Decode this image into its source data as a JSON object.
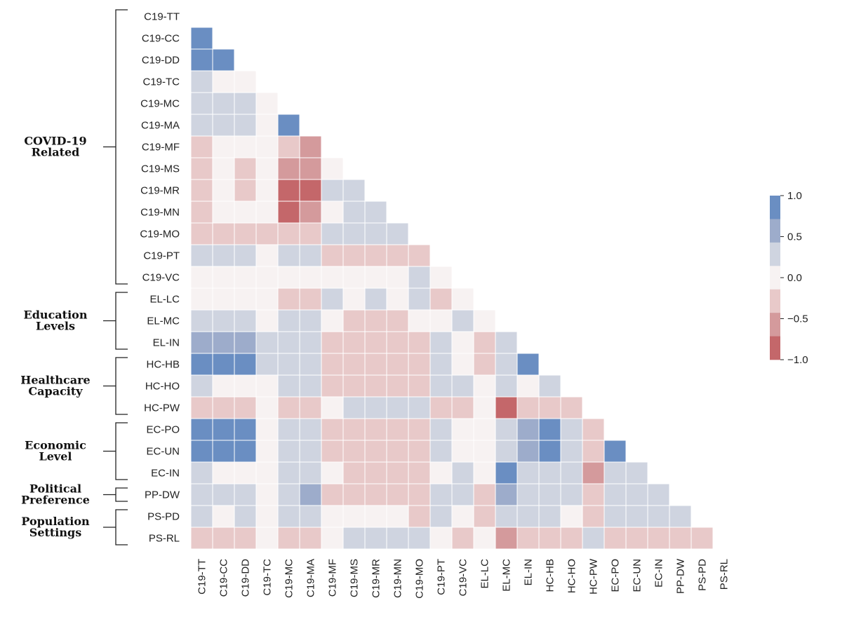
{
  "chart_data": {
    "type": "heatmap",
    "variables": [
      "C19-TT",
      "C19-CC",
      "C19-DD",
      "C19-TC",
      "C19-MC",
      "C19-MA",
      "C19-MF",
      "C19-MS",
      "C19-MR",
      "C19-MN",
      "C19-MO",
      "C19-PT",
      "C19-VC",
      "EL-LC",
      "EL-MC",
      "EL-IN",
      "HC-HB",
      "HC-HO",
      "HC-PW",
      "EC-PO",
      "EC-UN",
      "EC-IN",
      "PP-DW",
      "PS-PD",
      "PS-RL"
    ],
    "lower_triangle_values": [
      [],
      [
        0.9
      ],
      [
        0.9,
        0.9
      ],
      [
        0.2,
        0.0,
        0.0
      ],
      [
        0.2,
        0.2,
        0.2,
        0.0
      ],
      [
        0.2,
        0.2,
        0.2,
        0.0,
        0.9
      ],
      [
        -0.3,
        0.0,
        0.0,
        0.0,
        -0.3,
        -0.6
      ],
      [
        -0.3,
        0.0,
        -0.3,
        0.0,
        -0.6,
        -0.6,
        0.0
      ],
      [
        -0.3,
        0.0,
        -0.3,
        0.0,
        -0.9,
        -0.9,
        0.2,
        0.2
      ],
      [
        -0.3,
        0.0,
        0.0,
        0.0,
        -0.9,
        -0.6,
        0.0,
        0.2,
        0.2
      ],
      [
        -0.3,
        -0.3,
        -0.3,
        -0.3,
        -0.3,
        -0.3,
        0.2,
        0.2,
        0.2,
        0.2
      ],
      [
        0.2,
        0.2,
        0.2,
        0.0,
        0.2,
        0.2,
        -0.3,
        -0.3,
        -0.3,
        -0.3,
        -0.3
      ],
      [
        0.0,
        0.0,
        0.0,
        0.0,
        0.0,
        0.0,
        0.0,
        0.0,
        0.0,
        0.0,
        0.2,
        0.0
      ],
      [
        0.0,
        0.0,
        0.0,
        0.0,
        -0.3,
        -0.3,
        0.2,
        0.0,
        0.2,
        0.0,
        0.2,
        -0.3,
        0.0
      ],
      [
        0.2,
        0.2,
        0.2,
        0.0,
        0.2,
        0.2,
        0.0,
        -0.3,
        -0.3,
        -0.3,
        0.0,
        0.0,
        0.2,
        0.0
      ],
      [
        0.6,
        0.6,
        0.6,
        0.2,
        0.2,
        0.2,
        -0.3,
        -0.3,
        -0.3,
        -0.3,
        -0.3,
        0.2,
        0.0,
        -0.3,
        0.2
      ],
      [
        0.9,
        0.9,
        0.9,
        0.2,
        0.2,
        0.2,
        -0.3,
        -0.3,
        -0.3,
        -0.3,
        -0.3,
        0.2,
        0.0,
        -0.3,
        0.2,
        0.9
      ],
      [
        0.2,
        0.0,
        0.0,
        0.0,
        0.2,
        0.2,
        -0.3,
        -0.3,
        -0.3,
        -0.3,
        -0.3,
        0.2,
        0.2,
        0.0,
        0.2,
        0.0,
        0.2
      ],
      [
        -0.3,
        -0.3,
        -0.3,
        0.0,
        -0.3,
        -0.3,
        0.0,
        0.2,
        0.2,
        0.2,
        0.2,
        -0.3,
        -0.3,
        0.0,
        -0.9,
        -0.3,
        -0.3,
        -0.3
      ],
      [
        0.9,
        0.9,
        0.9,
        0.0,
        0.2,
        0.2,
        -0.3,
        -0.3,
        -0.3,
        -0.3,
        -0.3,
        0.2,
        0.0,
        0.0,
        0.2,
        0.6,
        0.9,
        0.2,
        -0.3
      ],
      [
        0.9,
        0.9,
        0.9,
        0.0,
        0.2,
        0.2,
        -0.3,
        -0.3,
        -0.3,
        -0.3,
        -0.3,
        0.2,
        0.0,
        0.0,
        0.2,
        0.6,
        0.9,
        0.2,
        -0.3,
        0.9
      ],
      [
        0.2,
        0.0,
        0.0,
        0.0,
        0.2,
        0.2,
        0.0,
        -0.3,
        -0.3,
        -0.3,
        -0.3,
        0.0,
        0.2,
        0.0,
        0.9,
        0.2,
        0.2,
        0.2,
        -0.6,
        0.2,
        0.2
      ],
      [
        0.2,
        0.2,
        0.2,
        0.0,
        0.2,
        0.6,
        -0.3,
        -0.3,
        -0.3,
        -0.3,
        -0.3,
        0.2,
        0.2,
        -0.3,
        0.6,
        0.2,
        0.2,
        0.2,
        -0.3,
        0.2,
        0.2,
        0.2
      ],
      [
        0.2,
        0.0,
        0.2,
        0.0,
        0.2,
        0.2,
        0.0,
        0.0,
        0.0,
        0.0,
        -0.3,
        0.2,
        0.0,
        -0.3,
        0.2,
        0.2,
        0.2,
        0.0,
        -0.3,
        0.2,
        0.2,
        0.2,
        0.2
      ],
      [
        -0.3,
        -0.3,
        -0.3,
        0.0,
        -0.3,
        -0.3,
        0.0,
        0.2,
        0.2,
        0.2,
        0.2,
        0.0,
        -0.3,
        0.0,
        -0.6,
        -0.3,
        -0.3,
        -0.3,
        0.2,
        -0.3,
        -0.3,
        -0.3,
        -0.3,
        -0.3
      ]
    ],
    "color_bins": [
      {
        "from": -1.0,
        "to": -0.75,
        "color": "#c4676a"
      },
      {
        "from": -0.75,
        "to": -0.45,
        "color": "#d49a9c"
      },
      {
        "from": -0.45,
        "to": -0.15,
        "color": "#e8c9c9"
      },
      {
        "from": -0.15,
        "to": 0.15,
        "color": "#f7f2f2"
      },
      {
        "from": 0.15,
        "to": 0.45,
        "color": "#cfd4e0"
      },
      {
        "from": 0.45,
        "to": 0.75,
        "color": "#9daccb"
      },
      {
        "from": 0.75,
        "to": 1.0,
        "color": "#6a8ec2"
      }
    ],
    "colorbar": {
      "ticks": [
        "1.0",
        "0.5",
        "0.0",
        "−0.5",
        "−1.0"
      ],
      "range": [
        -1.0,
        1.0
      ]
    },
    "groups": [
      {
        "name": [
          "COVID-19",
          "Related"
        ],
        "start": 0,
        "end": 12
      },
      {
        "name": [
          "Education",
          "Levels"
        ],
        "start": 13,
        "end": 15
      },
      {
        "name": [
          "Healthcare",
          "Capacity"
        ],
        "start": 16,
        "end": 18
      },
      {
        "name": [
          "Economic",
          "Level"
        ],
        "start": 19,
        "end": 21
      },
      {
        "name": [
          "Political",
          "Preference"
        ],
        "start": 22,
        "end": 22
      },
      {
        "name": [
          "Population",
          "Settings"
        ],
        "start": 23,
        "end": 24
      }
    ]
  }
}
